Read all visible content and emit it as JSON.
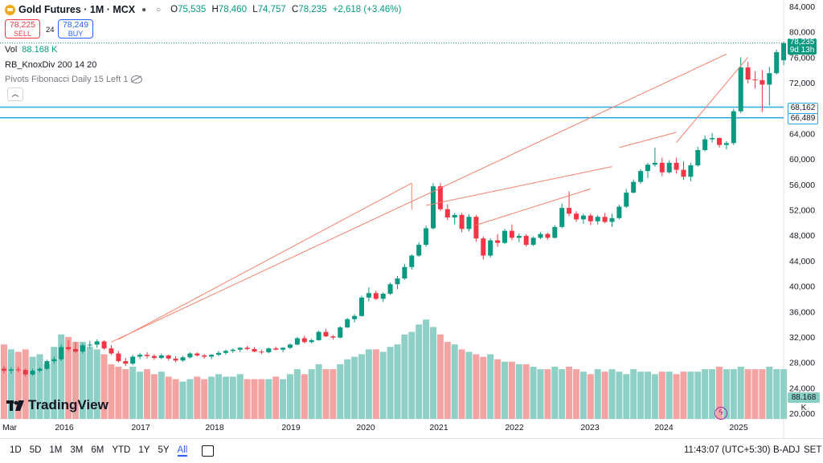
{
  "symbol": {
    "name": "Gold Futures · 1M · MCX"
  },
  "ohlc": {
    "o_label": "O",
    "o": "75,535",
    "h_label": "H",
    "h": "78,460",
    "l_label": "L",
    "l": "74,757",
    "c_label": "C",
    "c": "78,235",
    "change": "+2,618 (+3.46%)"
  },
  "trade": {
    "sell_price": "78,225",
    "sell_label": "SELL",
    "spread": "24",
    "buy_price": "78,249",
    "buy_label": "BUY"
  },
  "indicators": {
    "vol_label": "Vol",
    "vol_value": "88.168 K",
    "knox": "RB_KnoxDiv 200 14 20",
    "pivots": "Pivots Fibonacci Daily 15 Left 1"
  },
  "price_tags": {
    "last": "78,235",
    "countdown": "9d 13h",
    "level1": "68,162",
    "level2": "66,489",
    "volume": "88.168 K"
  },
  "bottom": {
    "ranges": [
      "1D",
      "5D",
      "1M",
      "3M",
      "6M",
      "YTD",
      "1Y",
      "5Y",
      "All"
    ],
    "active": "All",
    "time": "11:43:07 (UTC+5:30)",
    "badj": "B-ADJ",
    "set": "SET"
  },
  "logo_text": "TradingView",
  "colors": {
    "up": "#089981",
    "down": "#f23645",
    "vol_up": "#8fd0c6",
    "vol_down": "#f4a3a3",
    "hline": "#2ea7e0",
    "trend": "#f4816b"
  },
  "chart_data": {
    "type": "candlestick",
    "y_axis": {
      "ticks": [
        84000,
        80000,
        76000,
        72000,
        68000,
        64000,
        60000,
        56000,
        52000,
        48000,
        44000,
        40000,
        36000,
        32000,
        28000,
        24000,
        20000
      ],
      "ylim": [
        19000,
        85000
      ]
    },
    "x_axis": {
      "ticks": [
        "Mar",
        "2016",
        "2017",
        "2018",
        "2019",
        "2020",
        "2021",
        "2022",
        "2023",
        "2024",
        "2025"
      ]
    },
    "horizontal_levels": [
      68162,
      66489
    ],
    "last_price": 78235,
    "candles": [
      [
        27000,
        27400,
        26300,
        26700
      ],
      [
        26700,
        27200,
        26200,
        26900
      ],
      [
        26900,
        27300,
        26400,
        26800
      ],
      [
        26800,
        27000,
        25800,
        26100
      ],
      [
        26100,
        27000,
        25900,
        26700
      ],
      [
        26700,
        27200,
        26400,
        27000
      ],
      [
        27000,
        28400,
        26800,
        28200
      ],
      [
        28200,
        28900,
        27800,
        28500
      ],
      [
        28500,
        30800,
        28200,
        30400
      ],
      [
        30400,
        31500,
        29800,
        30100
      ],
      [
        30100,
        31200,
        29500,
        29700
      ],
      [
        29700,
        31000,
        29400,
        30700
      ],
      [
        30700,
        31400,
        30200,
        30800
      ],
      [
        30800,
        31600,
        30300,
        31300
      ],
      [
        31300,
        31500,
        30000,
        30200
      ],
      [
        30200,
        30700,
        29200,
        29400
      ],
      [
        29400,
        29800,
        28000,
        28200
      ],
      [
        28200,
        28700,
        27400,
        27800
      ],
      [
        27800,
        29200,
        27600,
        28900
      ],
      [
        28900,
        29500,
        28500,
        29200
      ],
      [
        29200,
        29600,
        28600,
        29000
      ],
      [
        29000,
        29300,
        28400,
        28700
      ],
      [
        28700,
        29400,
        28500,
        29100
      ],
      [
        29100,
        29200,
        28300,
        28600
      ],
      [
        28600,
        29000,
        28000,
        28300
      ],
      [
        28300,
        29000,
        28100,
        28800
      ],
      [
        28800,
        29600,
        28600,
        29400
      ],
      [
        29400,
        29600,
        28900,
        29100
      ],
      [
        29100,
        29300,
        28600,
        28900
      ],
      [
        28900,
        29300,
        28500,
        29200
      ],
      [
        29200,
        29800,
        29000,
        29500
      ],
      [
        29500,
        30000,
        29200,
        29800
      ],
      [
        29800,
        30200,
        29500,
        30000
      ],
      [
        30000,
        30400,
        29600,
        30300
      ],
      [
        30300,
        30600,
        29900,
        30100
      ],
      [
        30100,
        30400,
        29600,
        29700
      ],
      [
        29700,
        30000,
        29300,
        29600
      ],
      [
        29600,
        30300,
        29400,
        30200
      ],
      [
        30200,
        30500,
        29900,
        30000
      ],
      [
        30000,
        30400,
        29600,
        30300
      ],
      [
        30300,
        31000,
        30100,
        30800
      ],
      [
        30800,
        32000,
        30700,
        31800
      ],
      [
        31800,
        32200,
        31000,
        31200
      ],
      [
        31200,
        31700,
        31000,
        31500
      ],
      [
        31500,
        33000,
        31400,
        32800
      ],
      [
        32800,
        33300,
        32000,
        32100
      ],
      [
        32100,
        32300,
        31600,
        31900
      ],
      [
        31900,
        33700,
        31800,
        33500
      ],
      [
        33500,
        35000,
        33400,
        34800
      ],
      [
        34800,
        35600,
        34300,
        35300
      ],
      [
        35300,
        38500,
        35200,
        38200
      ],
      [
        38200,
        39800,
        37600,
        38900
      ],
      [
        38900,
        39300,
        37800,
        38000
      ],
      [
        38000,
        39000,
        37500,
        38800
      ],
      [
        38800,
        40600,
        38600,
        40300
      ],
      [
        40300,
        41600,
        39500,
        41200
      ],
      [
        41200,
        43500,
        41000,
        43000
      ],
      [
        43000,
        45000,
        42600,
        44800
      ],
      [
        44800,
        46900,
        44600,
        46500
      ],
      [
        46500,
        49500,
        46200,
        49100
      ],
      [
        49100,
        56200,
        48900,
        55700
      ],
      [
        55700,
        56200,
        51800,
        52100
      ],
      [
        52100,
        52900,
        50400,
        50800
      ],
      [
        50800,
        51500,
        49700,
        51200
      ],
      [
        51200,
        51500,
        48500,
        49000
      ],
      [
        49000,
        51300,
        48600,
        50900
      ],
      [
        50900,
        51200,
        47000,
        47500
      ],
      [
        47500,
        47800,
        44200,
        44800
      ],
      [
        44800,
        47500,
        44500,
        47200
      ],
      [
        47200,
        48200,
        46200,
        46800
      ],
      [
        46800,
        49000,
        46600,
        48700
      ],
      [
        48700,
        49700,
        47200,
        47600
      ],
      [
        47600,
        48300,
        46900,
        47900
      ],
      [
        47900,
        48200,
        46200,
        46500
      ],
      [
        46500,
        47800,
        46300,
        47600
      ],
      [
        47600,
        48500,
        47400,
        48200
      ],
      [
        48200,
        48400,
        47300,
        47600
      ],
      [
        47600,
        49600,
        47500,
        49300
      ],
      [
        49300,
        53000,
        49100,
        52300
      ],
      [
        52300,
        54900,
        51000,
        51400
      ],
      [
        51400,
        51800,
        50100,
        50500
      ],
      [
        50500,
        51400,
        49800,
        51100
      ],
      [
        51100,
        51400,
        49600,
        50200
      ],
      [
        50200,
        51200,
        49700,
        50900
      ],
      [
        50900,
        51500,
        49900,
        50100
      ],
      [
        50100,
        51400,
        49300,
        50700
      ],
      [
        50700,
        52800,
        50500,
        52500
      ],
      [
        52500,
        55300,
        52300,
        54700
      ],
      [
        54700,
        56800,
        54600,
        56400
      ],
      [
        56400,
        58400,
        56100,
        58100
      ],
      [
        58100,
        59400,
        57000,
        59100
      ],
      [
        59100,
        61800,
        58800,
        59400
      ],
      [
        59400,
        60200,
        57300,
        57900
      ],
      [
        57900,
        59800,
        57700,
        59400
      ],
      [
        59400,
        60200,
        57700,
        58300
      ],
      [
        58300,
        59600,
        56700,
        57200
      ],
      [
        57200,
        59400,
        56500,
        59000
      ],
      [
        59000,
        61900,
        58800,
        61400
      ],
      [
        61400,
        63700,
        61200,
        63100
      ],
      [
        63100,
        64100,
        62600,
        63300
      ],
      [
        63300,
        63400,
        61800,
        62200
      ],
      [
        62200,
        62800,
        61500,
        62500
      ],
      [
        62500,
        67900,
        62200,
        67500
      ],
      [
        67500,
        76000,
        67200,
        74400
      ],
      [
        74400,
        75300,
        71900,
        72500
      ],
      [
        72500,
        73800,
        71100,
        72400
      ],
      [
        72400,
        74000,
        67400,
        71700
      ],
      [
        71700,
        74500,
        68400,
        73500
      ],
      [
        73500,
        77200,
        73300,
        76800
      ],
      [
        75535,
        78460,
        74757,
        78235
      ]
    ],
    "volume": [
      30,
      28,
      27,
      28,
      25,
      26,
      22,
      29,
      34,
      33,
      31,
      31,
      29,
      28,
      26,
      22,
      21,
      20,
      21,
      19,
      20,
      18,
      19,
      17,
      16,
      15,
      16,
      17,
      16,
      17,
      18,
      17,
      17,
      18,
      16,
      16,
      16,
      16,
      17,
      16,
      18,
      20,
      18,
      20,
      22,
      20,
      20,
      22,
      24,
      25,
      26,
      28,
      28,
      27,
      29,
      30,
      34,
      35,
      38,
      40,
      37,
      34,
      31,
      30,
      28,
      27,
      26,
      25,
      26,
      24,
      23,
      23,
      22,
      22,
      21,
      20,
      20,
      21,
      20,
      21,
      20,
      19,
      18,
      20,
      19,
      20,
      19,
      18,
      20,
      19,
      19,
      18,
      19,
      19,
      18,
      19,
      19,
      19,
      20,
      20,
      21,
      20,
      20,
      21,
      20,
      20,
      20,
      21,
      20,
      20
    ],
    "volume_axis_max": 42
  }
}
